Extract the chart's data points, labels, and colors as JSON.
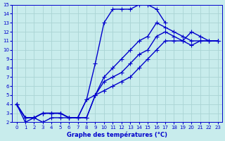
{
  "xlabel": "Graphe des températures (°C)",
  "xlim": [
    -0.5,
    23.5
  ],
  "ylim": [
    2,
    15
  ],
  "xticks": [
    0,
    1,
    2,
    3,
    4,
    5,
    6,
    7,
    8,
    9,
    10,
    11,
    12,
    13,
    14,
    15,
    16,
    17,
    18,
    19,
    20,
    21,
    22,
    23
  ],
  "yticks": [
    2,
    3,
    4,
    5,
    6,
    7,
    8,
    9,
    10,
    11,
    12,
    13,
    14,
    15
  ],
  "bg_color": "#c8ecec",
  "grid_color": "#aad4d4",
  "line_color": "#0000cc",
  "line_width": 1.0,
  "marker_size": 4,
  "lines": [
    {
      "x": [
        0,
        1,
        2,
        3,
        4,
        5,
        6,
        7,
        8,
        9,
        10,
        11,
        12,
        13,
        14,
        15,
        16,
        17
      ],
      "y": [
        4.0,
        2.0,
        2.5,
        2.0,
        2.5,
        2.5,
        2.5,
        2.5,
        4.5,
        8.5,
        13.0,
        14.5,
        14.5,
        14.5,
        15.0,
        15.0,
        14.5,
        13.0
      ]
    },
    {
      "x": [
        0,
        1,
        2,
        3,
        4,
        5,
        6,
        7,
        8,
        9,
        10,
        11,
        12,
        13,
        14,
        15,
        16,
        17,
        18,
        19,
        20,
        21,
        22,
        23
      ],
      "y": [
        4.0,
        2.5,
        2.5,
        3.0,
        3.0,
        3.0,
        2.5,
        2.5,
        2.5,
        5.0,
        7.0,
        8.0,
        9.0,
        10.0,
        11.0,
        11.5,
        13.0,
        12.5,
        12.0,
        11.5,
        11.0,
        11.0,
        11.0,
        11.0
      ]
    },
    {
      "x": [
        0,
        1,
        2,
        3,
        4,
        5,
        6,
        7,
        8,
        9,
        10,
        11,
        12,
        13,
        14,
        15,
        16,
        17,
        18,
        19,
        20,
        21,
        22,
        23
      ],
      "y": [
        4.0,
        2.5,
        2.5,
        3.0,
        3.0,
        3.0,
        2.5,
        2.5,
        2.5,
        5.0,
        6.5,
        7.0,
        7.5,
        8.5,
        9.5,
        10.0,
        11.5,
        12.0,
        11.5,
        11.0,
        10.5,
        11.0,
        11.0,
        11.0
      ]
    },
    {
      "x": [
        0,
        1,
        2,
        3,
        4,
        5,
        6,
        7,
        8,
        9,
        10,
        11,
        12,
        13,
        14,
        15,
        16,
        17,
        18,
        19,
        20,
        21,
        22,
        23
      ],
      "y": [
        4.0,
        2.5,
        2.5,
        3.0,
        3.0,
        3.0,
        2.5,
        2.5,
        4.5,
        5.0,
        5.5,
        6.0,
        6.5,
        7.0,
        8.0,
        9.0,
        10.0,
        11.0,
        11.0,
        11.0,
        12.0,
        11.5,
        11.0,
        11.0
      ]
    }
  ]
}
